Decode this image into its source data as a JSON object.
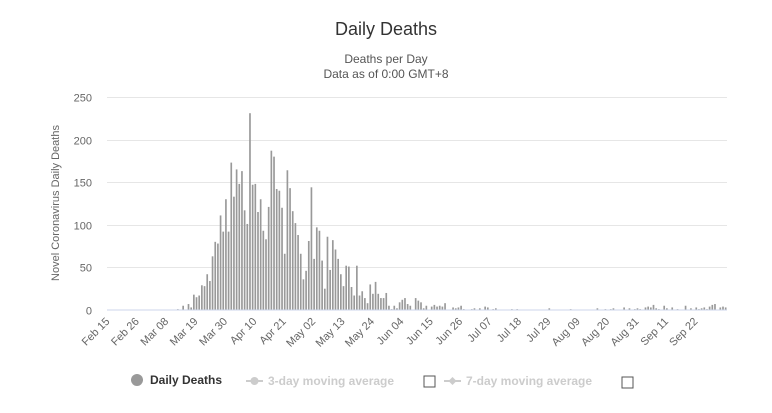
{
  "chart_data": {
    "type": "bar",
    "title": "Daily Deaths",
    "subtitle_lines": [
      "Deaths per Day",
      "Data as of 0:00 GMT+8"
    ],
    "ylabel": "Novel Coronavirus Daily Deaths",
    "xlabel": "",
    "ylim": [
      0,
      250
    ],
    "yticks": [
      0,
      50,
      100,
      150,
      200,
      250
    ],
    "grid": true,
    "legend_placement": "bottom-center",
    "bar_color": "#999999",
    "xticks": [
      {
        "label": "Feb 15",
        "day": 0
      },
      {
        "label": "Feb 26",
        "day": 11
      },
      {
        "label": "Mar 08",
        "day": 22
      },
      {
        "label": "Mar 19",
        "day": 33
      },
      {
        "label": "Mar 30",
        "day": 44
      },
      {
        "label": "Apr 10",
        "day": 55
      },
      {
        "label": "Apr 21",
        "day": 66
      },
      {
        "label": "May 02",
        "day": 77
      },
      {
        "label": "May 13",
        "day": 88
      },
      {
        "label": "May 24",
        "day": 99
      },
      {
        "label": "Jun 04",
        "day": 110
      },
      {
        "label": "Jun 15",
        "day": 121
      },
      {
        "label": "Jun 26",
        "day": 132
      },
      {
        "label": "Jul 07",
        "day": 143
      },
      {
        "label": "Jul 18",
        "day": 154
      },
      {
        "label": "Jul 29",
        "day": 165
      },
      {
        "label": "Aug 09",
        "day": 176
      },
      {
        "label": "Aug 20",
        "day": 187
      },
      {
        "label": "Aug 31",
        "day": 198
      },
      {
        "label": "Sep 11",
        "day": 209
      },
      {
        "label": "Sep 22",
        "day": 220
      }
    ],
    "series": [
      {
        "name": "Daily Deaths",
        "start_date": "Feb 15",
        "values": [
          0,
          0,
          0,
          0,
          0,
          0,
          0,
          0,
          0,
          0,
          0,
          0,
          0,
          0,
          0,
          0,
          0,
          0,
          0,
          0,
          0,
          0,
          0,
          0,
          0,
          0,
          1,
          0,
          5,
          0,
          7,
          3,
          18,
          15,
          17,
          29,
          28,
          42,
          34,
          63,
          80,
          78,
          111,
          92,
          130,
          92,
          173,
          133,
          165,
          148,
          163,
          117,
          101,
          231,
          147,
          148,
          115,
          130,
          93,
          83,
          121,
          187,
          180,
          142,
          140,
          120,
          66,
          164,
          143,
          116,
          102,
          88,
          66,
          36,
          46,
          81,
          144,
          60,
          97,
          93,
          58,
          25,
          86,
          47,
          82,
          71,
          60,
          42,
          28,
          52,
          51,
          27,
          17,
          52,
          17,
          22,
          14,
          8,
          30,
          19,
          33,
          19,
          14,
          14,
          20,
          5,
          1,
          5,
          2,
          9,
          12,
          14,
          7,
          5,
          0,
          14,
          11,
          9,
          2,
          5,
          0,
          4,
          6,
          4,
          5,
          4,
          8,
          0,
          0,
          3,
          2,
          3,
          5,
          1,
          0,
          0,
          1,
          2,
          0,
          2,
          0,
          4,
          3,
          0,
          1,
          2,
          0,
          0,
          0,
          0,
          0,
          1,
          0,
          1,
          0,
          0,
          0,
          0,
          0,
          0,
          0,
          0,
          0,
          0,
          0,
          2,
          0,
          0,
          0,
          0,
          0,
          0,
          0,
          1,
          0,
          0,
          0,
          0,
          0,
          0,
          0,
          0,
          0,
          2,
          0,
          0,
          1,
          0,
          1,
          2,
          0,
          0,
          0,
          3,
          0,
          2,
          0,
          1,
          2,
          1,
          0,
          3,
          4,
          3,
          6,
          2,
          1,
          0,
          5,
          2,
          0,
          3,
          0,
          1,
          0,
          0,
          5,
          0,
          2,
          0,
          3,
          1,
          2,
          3,
          1,
          4,
          6,
          7,
          0,
          3,
          4,
          3
        ]
      }
    ]
  },
  "legend": {
    "items": [
      {
        "label": "Daily Deaths",
        "color": "#999999",
        "active": true
      },
      {
        "label": "3-day moving average",
        "color": "#cccccc",
        "active": false
      },
      {
        "label": "7-day moving average",
        "color": "#cccccc",
        "active": false
      }
    ]
  }
}
